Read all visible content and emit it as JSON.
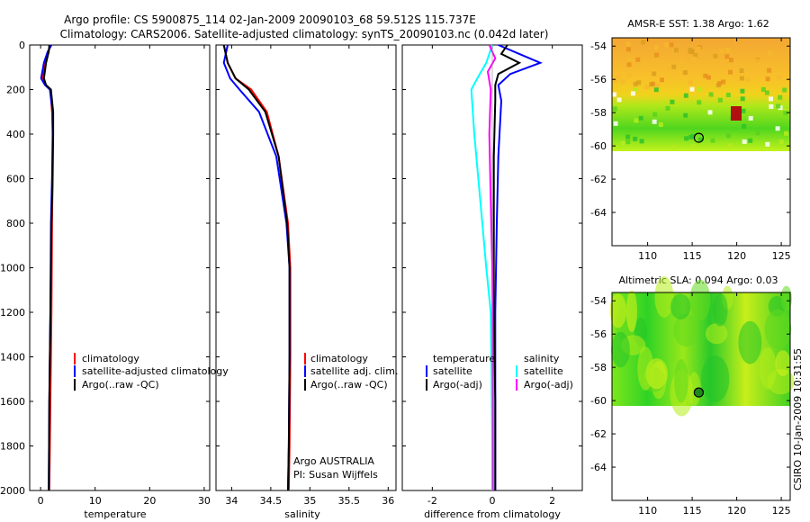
{
  "header": {
    "line1": "Argo profile: CS 5900875_114 02-Jan-2009 20090103_68 59.512S 115.737E",
    "line2": "Climatology: CARS2006. Satellite-adjusted climatology: synTS_20090103.nc (0.042d later)"
  },
  "side_stamp": "CSIRO 10-Jan-2009 10:31:55",
  "colors": {
    "climatology": "#ff0000",
    "satellite": "#0000ff",
    "argo": "#000000",
    "salinity_satellite": "#00ffff",
    "salinity_argo": "#ff00ff"
  },
  "chart_data": [
    {
      "type": "line",
      "xlabel": "temperature",
      "ylabel": "",
      "xlim": [
        -2,
        31
      ],
      "ylim": [
        2000,
        0
      ],
      "xticks": [
        "0",
        "10",
        "20",
        "30"
      ],
      "xtick_values": [
        0,
        10,
        20,
        30
      ],
      "yticks": [
        "0",
        "200",
        "400",
        "600",
        "800",
        "1000",
        "1200",
        "1400",
        "1600",
        "1800",
        "2000"
      ],
      "ytick_values": [
        0,
        200,
        400,
        600,
        800,
        1000,
        1200,
        1400,
        1600,
        1800,
        2000
      ],
      "legend": {
        "placement": "center-right",
        "entries": [
          {
            "label": "climatology",
            "color": "#ff0000"
          },
          {
            "label": "satellite-adjusted climatology",
            "color": "#0000ff"
          },
          {
            "label": "Argo(..raw -QC)",
            "color": "#000000"
          }
        ]
      },
      "series": [
        {
          "color": "#ff0000",
          "x": [
            1.9,
            1.4,
            0.8,
            0.3,
            0.9,
            1.8,
            2.1,
            2.2,
            2.2,
            2.1,
            2.0,
            1.8,
            1.6
          ],
          "y": [
            0,
            30,
            80,
            150,
            180,
            200,
            300,
            400,
            600,
            800,
            1200,
            1600,
            2000
          ]
        },
        {
          "color": "#0000ff",
          "x": [
            2.0,
            1.3,
            0.6,
            0.1,
            0.8,
            1.7,
            2.2,
            2.2,
            2.1,
            1.9,
            1.8,
            1.6,
            1.5
          ],
          "y": [
            0,
            30,
            80,
            150,
            180,
            200,
            300,
            400,
            600,
            800,
            1200,
            1600,
            2000
          ]
        },
        {
          "color": "#000000",
          "x": [
            1.6,
            1.5,
            1.0,
            0.6,
            1.0,
            1.9,
            2.3,
            2.3,
            2.2,
            2.0,
            1.8,
            1.6,
            1.5
          ],
          "y": [
            0,
            30,
            80,
            150,
            180,
            200,
            300,
            400,
            600,
            800,
            1200,
            1600,
            2000
          ]
        }
      ]
    },
    {
      "type": "line",
      "xlabel": "salinity",
      "ylabel": "",
      "xlim": [
        33.8,
        36.1
      ],
      "ylim": [
        2000,
        0
      ],
      "xticks": [
        "34",
        "34.5",
        "35",
        "35.5",
        "36"
      ],
      "xtick_values": [
        34,
        34.5,
        35,
        35.5,
        36
      ],
      "legend": {
        "placement": "center-right",
        "entries": [
          {
            "label": "climatology",
            "color": "#ff0000"
          },
          {
            "label": "satellite adj. clim.",
            "color": "#0000ff"
          },
          {
            "label": "Argo(..raw -QC)",
            "color": "#000000"
          }
        ]
      },
      "annotation": [
        "Argo AUSTRALIA",
        "PI: Susan Wijffels"
      ],
      "series": [
        {
          "color": "#ff0000",
          "x": [
            33.9,
            33.95,
            34.05,
            34.25,
            34.45,
            34.6,
            34.72,
            34.75,
            34.75,
            34.74,
            34.73
          ],
          "y": [
            0,
            80,
            150,
            200,
            300,
            500,
            800,
            1000,
            1400,
            1800,
            2000
          ]
        },
        {
          "color": "#0000ff",
          "x": [
            33.95,
            33.9,
            33.98,
            34.1,
            34.35,
            34.57,
            34.7,
            34.74,
            34.74,
            34.73,
            34.72
          ],
          "y": [
            0,
            80,
            150,
            200,
            300,
            500,
            800,
            1000,
            1400,
            1800,
            2000
          ]
        },
        {
          "color": "#000000",
          "x": [
            33.9,
            33.95,
            34.05,
            34.22,
            34.43,
            34.6,
            34.71,
            34.74,
            34.74,
            34.73,
            34.72
          ],
          "y": [
            0,
            80,
            150,
            200,
            300,
            500,
            800,
            1000,
            1400,
            1800,
            2000
          ]
        }
      ]
    },
    {
      "type": "line",
      "xlabel": "difference from climatology",
      "ylabel": "",
      "xlim": [
        -3,
        3
      ],
      "ylim": [
        2000,
        0
      ],
      "xticks": [
        "-2",
        "0",
        "2"
      ],
      "xtick_values": [
        -2,
        0,
        2
      ],
      "legend": {
        "placement": "center",
        "entries": [
          {
            "group": "temperature",
            "label": "satellite",
            "color": "#0000ff"
          },
          {
            "group": "temperature",
            "label": "Argo(-adj)",
            "color": "#000000"
          },
          {
            "group": "salinity",
            "label": "satellite",
            "color": "#00ffff"
          },
          {
            "group": "salinity",
            "label": "Argo(-adj)",
            "color": "#ff00ff"
          }
        ]
      },
      "series": [
        {
          "color": "#0000ff",
          "x": [
            0.2,
            0.9,
            1.6,
            0.6,
            0.2,
            0.3,
            0.2,
            0.15,
            0.1,
            0.1,
            0.1
          ],
          "y": [
            0,
            40,
            80,
            130,
            180,
            250,
            500,
            800,
            1200,
            1600,
            2000
          ]
        },
        {
          "color": "#000000",
          "x": [
            0.5,
            0.3,
            0.9,
            0.2,
            0.1,
            0.1,
            0.05,
            0.05,
            0.05,
            0.1,
            0.1
          ],
          "y": [
            0,
            40,
            80,
            130,
            180,
            250,
            500,
            800,
            1200,
            1600,
            2000
          ]
        },
        {
          "color": "#00ffff",
          "x": [
            0,
            -0.2,
            -0.5,
            -0.7,
            -0.6,
            -0.4,
            -0.2,
            -0.05,
            -0.02,
            0,
            0
          ],
          "y": [
            0,
            80,
            150,
            200,
            400,
            700,
            1000,
            1200,
            1500,
            1800,
            2000
          ]
        },
        {
          "color": "#ff00ff",
          "x": [
            -0.1,
            0.1,
            -0.15,
            -0.05,
            -0.1,
            -0.05,
            0,
            0.02,
            0.02,
            0.02
          ],
          "y": [
            0,
            60,
            120,
            200,
            400,
            700,
            1000,
            1400,
            1800,
            2000
          ]
        }
      ]
    },
    {
      "type": "heatmap",
      "title": "AMSR-E SST: 1.38 Argo: 1.62",
      "xticks": [
        "110",
        "115",
        "120",
        "125"
      ],
      "xtick_values": [
        110,
        115,
        120,
        125
      ],
      "yticks": [
        "-54",
        "-56",
        "-58",
        "-60",
        "-62",
        "-64"
      ],
      "ytick_values": [
        -54,
        -56,
        -58,
        -60,
        -62,
        -64
      ],
      "xlim": [
        106,
        126
      ],
      "ylim": [
        -66,
        -53.5
      ],
      "data_extent_lat": [
        -60,
        -53.5
      ],
      "marker": {
        "lon": 115.737,
        "lat": -59.512
      }
    },
    {
      "type": "heatmap",
      "title": "Altimetric SLA: 0.094 Argo: 0.03",
      "xticks": [
        "110",
        "115",
        "120",
        "125"
      ],
      "xtick_values": [
        110,
        115,
        120,
        125
      ],
      "yticks": [
        "-54",
        "-56",
        "-58",
        "-60",
        "-62",
        "-64"
      ],
      "ytick_values": [
        -54,
        -56,
        -58,
        -60,
        -62,
        -64
      ],
      "xlim": [
        106,
        126
      ],
      "ylim": [
        -66,
        -53.5
      ],
      "data_extent_lat": [
        -60,
        -53.5
      ],
      "marker": {
        "lon": 115.737,
        "lat": -59.512
      }
    }
  ]
}
